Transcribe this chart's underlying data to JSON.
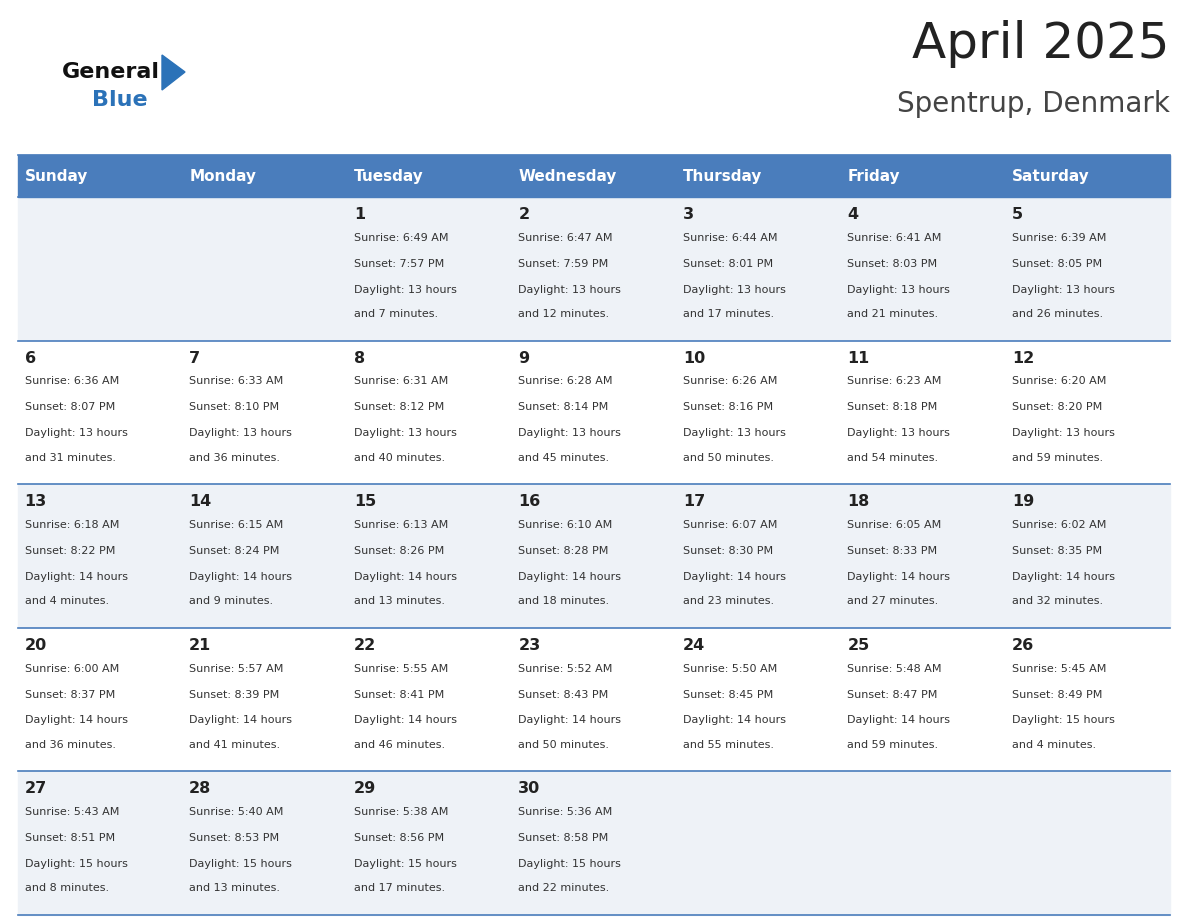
{
  "title": "April 2025",
  "subtitle": "Spentrup, Denmark",
  "days_of_week": [
    "Sunday",
    "Monday",
    "Tuesday",
    "Wednesday",
    "Thursday",
    "Friday",
    "Saturday"
  ],
  "header_bg": "#4a7dbc",
  "header_text": "#ffffff",
  "row_bg_odd": "#eef2f7",
  "row_bg_even": "#ffffff",
  "separator_color": "#4a7dbc",
  "day_number_color": "#222222",
  "cell_text_color": "#333333",
  "title_color": "#222222",
  "subtitle_color": "#444444",
  "logo_general_color": "#111111",
  "logo_blue_color": "#2b72b8",
  "weeks": [
    [
      {
        "day": "",
        "sunrise": "",
        "sunset": "",
        "daylight": ""
      },
      {
        "day": "",
        "sunrise": "",
        "sunset": "",
        "daylight": ""
      },
      {
        "day": "1",
        "sunrise": "Sunrise: 6:49 AM",
        "sunset": "Sunset: 7:57 PM",
        "daylight": "Daylight: 13 hours\nand 7 minutes."
      },
      {
        "day": "2",
        "sunrise": "Sunrise: 6:47 AM",
        "sunset": "Sunset: 7:59 PM",
        "daylight": "Daylight: 13 hours\nand 12 minutes."
      },
      {
        "day": "3",
        "sunrise": "Sunrise: 6:44 AM",
        "sunset": "Sunset: 8:01 PM",
        "daylight": "Daylight: 13 hours\nand 17 minutes."
      },
      {
        "day": "4",
        "sunrise": "Sunrise: 6:41 AM",
        "sunset": "Sunset: 8:03 PM",
        "daylight": "Daylight: 13 hours\nand 21 minutes."
      },
      {
        "day": "5",
        "sunrise": "Sunrise: 6:39 AM",
        "sunset": "Sunset: 8:05 PM",
        "daylight": "Daylight: 13 hours\nand 26 minutes."
      }
    ],
    [
      {
        "day": "6",
        "sunrise": "Sunrise: 6:36 AM",
        "sunset": "Sunset: 8:07 PM",
        "daylight": "Daylight: 13 hours\nand 31 minutes."
      },
      {
        "day": "7",
        "sunrise": "Sunrise: 6:33 AM",
        "sunset": "Sunset: 8:10 PM",
        "daylight": "Daylight: 13 hours\nand 36 minutes."
      },
      {
        "day": "8",
        "sunrise": "Sunrise: 6:31 AM",
        "sunset": "Sunset: 8:12 PM",
        "daylight": "Daylight: 13 hours\nand 40 minutes."
      },
      {
        "day": "9",
        "sunrise": "Sunrise: 6:28 AM",
        "sunset": "Sunset: 8:14 PM",
        "daylight": "Daylight: 13 hours\nand 45 minutes."
      },
      {
        "day": "10",
        "sunrise": "Sunrise: 6:26 AM",
        "sunset": "Sunset: 8:16 PM",
        "daylight": "Daylight: 13 hours\nand 50 minutes."
      },
      {
        "day": "11",
        "sunrise": "Sunrise: 6:23 AM",
        "sunset": "Sunset: 8:18 PM",
        "daylight": "Daylight: 13 hours\nand 54 minutes."
      },
      {
        "day": "12",
        "sunrise": "Sunrise: 6:20 AM",
        "sunset": "Sunset: 8:20 PM",
        "daylight": "Daylight: 13 hours\nand 59 minutes."
      }
    ],
    [
      {
        "day": "13",
        "sunrise": "Sunrise: 6:18 AM",
        "sunset": "Sunset: 8:22 PM",
        "daylight": "Daylight: 14 hours\nand 4 minutes."
      },
      {
        "day": "14",
        "sunrise": "Sunrise: 6:15 AM",
        "sunset": "Sunset: 8:24 PM",
        "daylight": "Daylight: 14 hours\nand 9 minutes."
      },
      {
        "day": "15",
        "sunrise": "Sunrise: 6:13 AM",
        "sunset": "Sunset: 8:26 PM",
        "daylight": "Daylight: 14 hours\nand 13 minutes."
      },
      {
        "day": "16",
        "sunrise": "Sunrise: 6:10 AM",
        "sunset": "Sunset: 8:28 PM",
        "daylight": "Daylight: 14 hours\nand 18 minutes."
      },
      {
        "day": "17",
        "sunrise": "Sunrise: 6:07 AM",
        "sunset": "Sunset: 8:30 PM",
        "daylight": "Daylight: 14 hours\nand 23 minutes."
      },
      {
        "day": "18",
        "sunrise": "Sunrise: 6:05 AM",
        "sunset": "Sunset: 8:33 PM",
        "daylight": "Daylight: 14 hours\nand 27 minutes."
      },
      {
        "day": "19",
        "sunrise": "Sunrise: 6:02 AM",
        "sunset": "Sunset: 8:35 PM",
        "daylight": "Daylight: 14 hours\nand 32 minutes."
      }
    ],
    [
      {
        "day": "20",
        "sunrise": "Sunrise: 6:00 AM",
        "sunset": "Sunset: 8:37 PM",
        "daylight": "Daylight: 14 hours\nand 36 minutes."
      },
      {
        "day": "21",
        "sunrise": "Sunrise: 5:57 AM",
        "sunset": "Sunset: 8:39 PM",
        "daylight": "Daylight: 14 hours\nand 41 minutes."
      },
      {
        "day": "22",
        "sunrise": "Sunrise: 5:55 AM",
        "sunset": "Sunset: 8:41 PM",
        "daylight": "Daylight: 14 hours\nand 46 minutes."
      },
      {
        "day": "23",
        "sunrise": "Sunrise: 5:52 AM",
        "sunset": "Sunset: 8:43 PM",
        "daylight": "Daylight: 14 hours\nand 50 minutes."
      },
      {
        "day": "24",
        "sunrise": "Sunrise: 5:50 AM",
        "sunset": "Sunset: 8:45 PM",
        "daylight": "Daylight: 14 hours\nand 55 minutes."
      },
      {
        "day": "25",
        "sunrise": "Sunrise: 5:48 AM",
        "sunset": "Sunset: 8:47 PM",
        "daylight": "Daylight: 14 hours\nand 59 minutes."
      },
      {
        "day": "26",
        "sunrise": "Sunrise: 5:45 AM",
        "sunset": "Sunset: 8:49 PM",
        "daylight": "Daylight: 15 hours\nand 4 minutes."
      }
    ],
    [
      {
        "day": "27",
        "sunrise": "Sunrise: 5:43 AM",
        "sunset": "Sunset: 8:51 PM",
        "daylight": "Daylight: 15 hours\nand 8 minutes."
      },
      {
        "day": "28",
        "sunrise": "Sunrise: 5:40 AM",
        "sunset": "Sunset: 8:53 PM",
        "daylight": "Daylight: 15 hours\nand 13 minutes."
      },
      {
        "day": "29",
        "sunrise": "Sunrise: 5:38 AM",
        "sunset": "Sunset: 8:56 PM",
        "daylight": "Daylight: 15 hours\nand 17 minutes."
      },
      {
        "day": "30",
        "sunrise": "Sunrise: 5:36 AM",
        "sunset": "Sunset: 8:58 PM",
        "daylight": "Daylight: 15 hours\nand 22 minutes."
      },
      {
        "day": "",
        "sunrise": "",
        "sunset": "",
        "daylight": ""
      },
      {
        "day": "",
        "sunrise": "",
        "sunset": "",
        "daylight": ""
      },
      {
        "day": "",
        "sunrise": "",
        "sunset": "",
        "daylight": ""
      }
    ]
  ]
}
